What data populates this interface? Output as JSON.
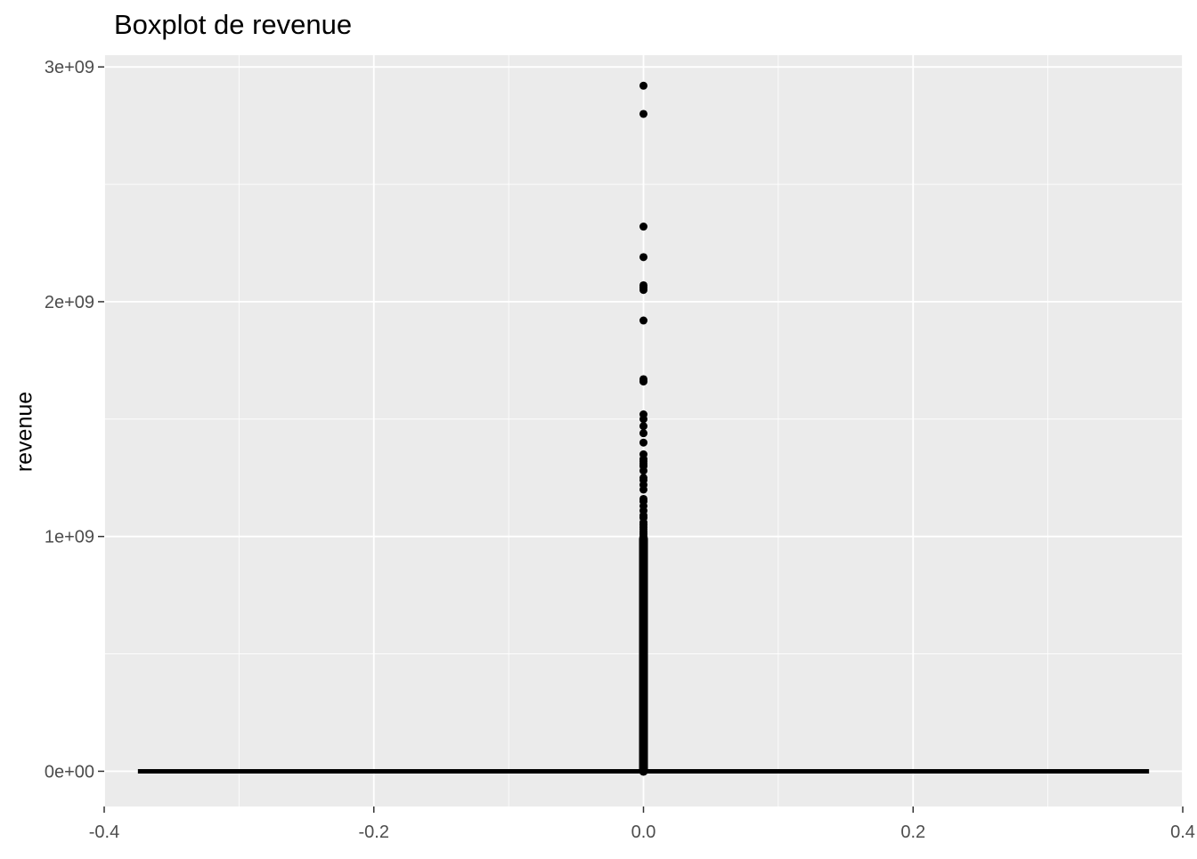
{
  "chart_data": {
    "type": "boxplot",
    "title": "Boxplot de revenue",
    "xlabel": "",
    "ylabel": "revenue",
    "xlim": [
      -0.4,
      0.4
    ],
    "ylim": [
      -150000000,
      3050000000
    ],
    "x_ticks": [
      {
        "value": -0.4,
        "label": "-0.4"
      },
      {
        "value": -0.2,
        "label": "-0.2"
      },
      {
        "value": 0.0,
        "label": "0.0"
      },
      {
        "value": 0.2,
        "label": "0.2"
      },
      {
        "value": 0.4,
        "label": "0.4"
      }
    ],
    "y_ticks": [
      {
        "value": 0,
        "label": "0e+00"
      },
      {
        "value": 1000000000,
        "label": "1e+09"
      },
      {
        "value": 2000000000,
        "label": "2e+09"
      },
      {
        "value": 3000000000,
        "label": "3e+09"
      }
    ],
    "grid": true,
    "box": {
      "x": 0.0,
      "xmin": -0.375,
      "xmax": 0.375,
      "q1": 0,
      "median": 0,
      "q3": 0,
      "whisker_low": 0,
      "whisker_high": 0
    },
    "outliers_x": 0.0,
    "outliers": [
      2920000000,
      2800000000,
      2320000000,
      2190000000,
      2070000000,
      2060000000,
      2050000000,
      1920000000,
      1670000000,
      1660000000,
      1520000000,
      1500000000,
      1470000000,
      1440000000,
      1400000000,
      1350000000,
      1330000000,
      1320000000,
      1310000000,
      1300000000,
      1280000000,
      1250000000,
      1240000000,
      1220000000,
      1200000000,
      1160000000,
      1150000000,
      1130000000,
      1110000000,
      1090000000,
      1080000000,
      1060000000,
      1050000000,
      1040000000,
      1030000000,
      1020000000,
      1010000000,
      1000000000
    ],
    "dense_outlier_range": [
      0,
      990000000
    ],
    "colors": {
      "panel": "#EBEBEB",
      "grid": "#FFFFFF",
      "points": "#000000",
      "box": "#000000",
      "tick_text": "#4D4D4D",
      "tick_mark": "#333333"
    }
  }
}
